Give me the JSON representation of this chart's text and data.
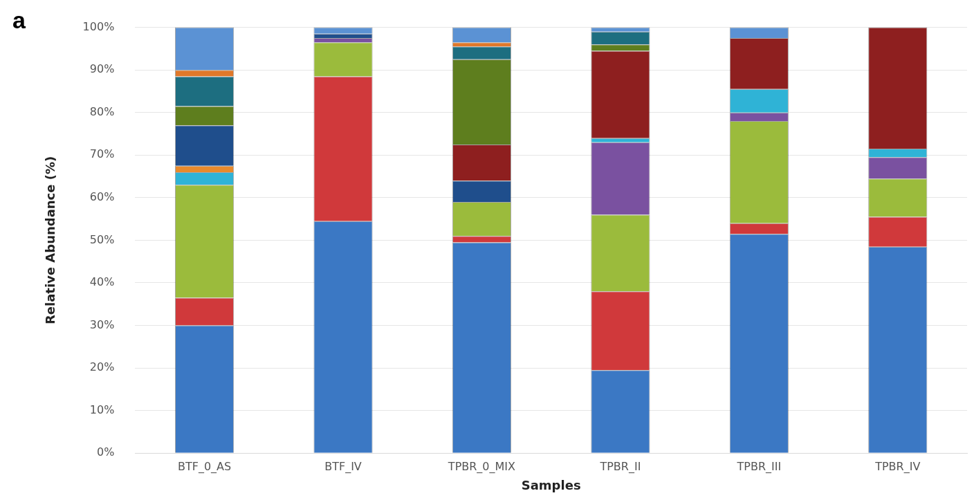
{
  "chart_data": {
    "type": "bar",
    "stacked": true,
    "xlabel": "Samples",
    "ylabel": "Relative Abundance (%)",
    "annotations": [
      "a"
    ],
    "categories": [
      "BTF_0_AS",
      "BTF_IV",
      "TPBR_0_MIX",
      "TPBR_II",
      "TPBR_III",
      "TPBR_IV"
    ],
    "ylim": [
      0,
      100
    ],
    "yticks": [
      {
        "value": 0,
        "label": "0%"
      },
      {
        "value": 10,
        "label": "10%"
      },
      {
        "value": 20,
        "label": "20%"
      },
      {
        "value": 30,
        "label": "30%"
      },
      {
        "value": 40,
        "label": "40%"
      },
      {
        "value": 50,
        "label": "50%"
      },
      {
        "value": 60,
        "label": "60%"
      },
      {
        "value": 70,
        "label": "70%"
      },
      {
        "value": 80,
        "label": "80%"
      },
      {
        "value": 90,
        "label": "90%"
      },
      {
        "value": 100,
        "label": "100%"
      }
    ],
    "grid": "y",
    "legend": false,
    "series": [
      {
        "color": "#3b78c4",
        "values": [
          30,
          54.5,
          49.5,
          19.5,
          51.5,
          48.5
        ]
      },
      {
        "color": "#d0393b",
        "values": [
          6.5,
          34,
          1.5,
          18.5,
          2.5,
          7
        ]
      },
      {
        "color": "#9bbb3c",
        "values": [
          26.5,
          8,
          8,
          18,
          24,
          9
        ]
      },
      {
        "color": "#7a51a0",
        "values": [
          null,
          1,
          null,
          17,
          2,
          5
        ]
      },
      {
        "color": "#2fb3d6",
        "values": [
          3,
          null,
          null,
          1,
          5.5,
          2
        ]
      },
      {
        "color": "#e88a2c",
        "values": [
          1.5,
          null,
          null,
          null,
          null,
          null
        ]
      },
      {
        "color": "#1f4e8c",
        "values": [
          9.5,
          1,
          5,
          null,
          null,
          null
        ]
      },
      {
        "color": "#8e1f1f",
        "values": [
          null,
          null,
          8.5,
          20.5,
          12,
          28.5
        ]
      },
      {
        "color": "#5e7e1e",
        "values": [
          4.5,
          null,
          20,
          1.5,
          null,
          null
        ]
      },
      {
        "color": "#1d6e80",
        "values": [
          7,
          null,
          3,
          3,
          null,
          null
        ]
      },
      {
        "color": "#e0782a",
        "values": [
          1.5,
          null,
          1,
          null,
          null,
          null
        ]
      },
      {
        "color": "#5b92d4",
        "values": [
          10,
          1.5,
          3.5,
          1,
          2.5,
          null
        ]
      }
    ]
  }
}
